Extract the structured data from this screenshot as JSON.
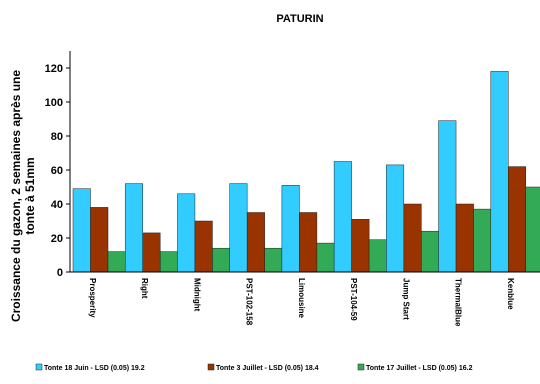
{
  "chart_data": {
    "type": "bar",
    "title": "PATURIN",
    "ylabel": "Croissance du gazon, 2 semaines après une tonte à 51mm",
    "ylabel_lines": [
      "Croissance du gazon, 2 semaines après une",
      "tonte à 51mm"
    ],
    "xlabel": "",
    "ylim": [
      0,
      130
    ],
    "yticks": [
      0,
      20,
      40,
      60,
      80,
      100,
      120
    ],
    "grid": false,
    "legend_position": "bottom",
    "categories": [
      "Prosperity",
      "Right",
      "Midnight",
      "PST-102-158",
      "Limousine",
      "PST-104-59",
      "Jump Start",
      "ThermalBlue",
      "Kenblue"
    ],
    "series": [
      {
        "name": "Tonte 18 Juin - LSD (0.05) 19.2",
        "color": "#33ccff",
        "values": [
          49,
          52,
          46,
          52,
          51,
          65,
          63,
          89,
          118
        ]
      },
      {
        "name": "Tonte 3 Juillet - LSD (0.05) 18.4",
        "color": "#993300",
        "values": [
          38,
          23,
          30,
          35,
          35,
          31,
          40,
          40,
          62
        ]
      },
      {
        "name": "Tonte 17 Juillet - LSD (0.05) 16.2",
        "color": "#33aa55",
        "values": [
          12,
          12,
          14,
          14,
          17,
          19,
          24,
          37,
          50
        ]
      }
    ]
  }
}
